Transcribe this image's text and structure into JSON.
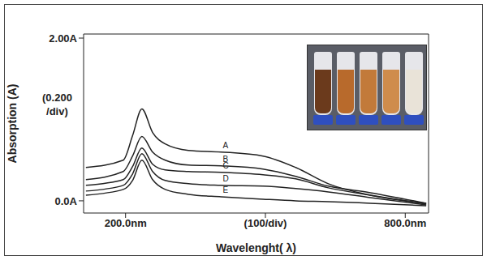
{
  "chart_data": {
    "type": "line",
    "y_label": "Absorption (A)",
    "x_label": "Wavelenght( λ)",
    "annotations": [
      "(0.200",
      "/div)"
    ],
    "x": [
      115,
      195,
      215,
      235,
      258,
      285,
      335,
      405,
      495,
      565,
      635,
      725,
      845
    ],
    "xlim": [
      110,
      850
    ],
    "xticks": [
      {
        "value": 200,
        "label": "200.0nm"
      },
      {
        "value": 500,
        "label": "(100/div)"
      },
      {
        "value": 800,
        "label": "800.0nm"
      }
    ],
    "ylim": [
      -0.15,
      2.05
    ],
    "yticks": [
      {
        "value": 0,
        "label": "0.0A"
      },
      {
        "value": 2,
        "label": "2.00A"
      }
    ],
    "grid": false,
    "series": [
      {
        "name": "A",
        "color": "#222222",
        "values": [
          0.41,
          0.5,
          0.8,
          1.13,
          0.84,
          0.7,
          0.62,
          0.6,
          0.55,
          0.41,
          0.21,
          0.07,
          -0.03
        ]
      },
      {
        "name": "B",
        "color": "#222222",
        "values": [
          0.26,
          0.36,
          0.55,
          0.79,
          0.6,
          0.5,
          0.44,
          0.43,
          0.39,
          0.3,
          0.18,
          0.1,
          -0.03
        ]
      },
      {
        "name": "C",
        "color": "#222222",
        "values": [
          0.19,
          0.26,
          0.42,
          0.65,
          0.45,
          0.38,
          0.36,
          0.35,
          0.32,
          0.27,
          0.16,
          0.07,
          -0.04
        ]
      },
      {
        "name": "D",
        "color": "#222222",
        "values": [
          0.12,
          0.19,
          0.33,
          0.58,
          0.36,
          0.25,
          0.21,
          0.19,
          0.18,
          0.15,
          0.11,
          0.04,
          -0.05
        ]
      },
      {
        "name": "E",
        "color": "#222222",
        "values": [
          0.07,
          0.14,
          0.25,
          0.5,
          0.26,
          0.14,
          0.08,
          0.05,
          0.02,
          0.0,
          -0.01,
          -0.03,
          -0.06
        ]
      }
    ]
  }
}
